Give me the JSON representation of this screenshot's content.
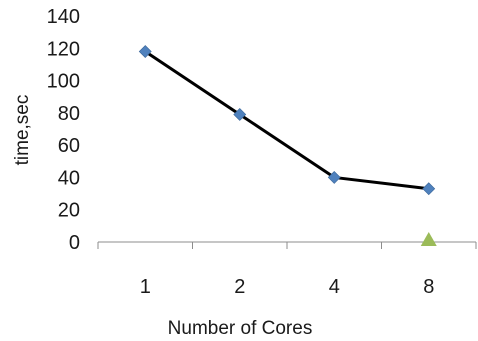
{
  "chart_data": {
    "type": "line",
    "title": "",
    "xlabel": "Number of Cores",
    "ylabel": "time,sec",
    "categories": [
      "1",
      "2",
      "4",
      "8"
    ],
    "ylim": [
      0,
      140
    ],
    "yticks": [
      0,
      20,
      40,
      60,
      80,
      100,
      120,
      140
    ],
    "grid": false,
    "legend": "none",
    "series": [
      {
        "values": [
          118,
          79,
          40,
          33
        ],
        "color": "#000000",
        "marker": "diamond",
        "marker_color": "#4f81bd"
      },
      {
        "values": [
          null,
          null,
          null,
          0
        ],
        "color": "#9bbb59",
        "marker": "triangle",
        "marker_color": "#9bbb59"
      }
    ]
  }
}
